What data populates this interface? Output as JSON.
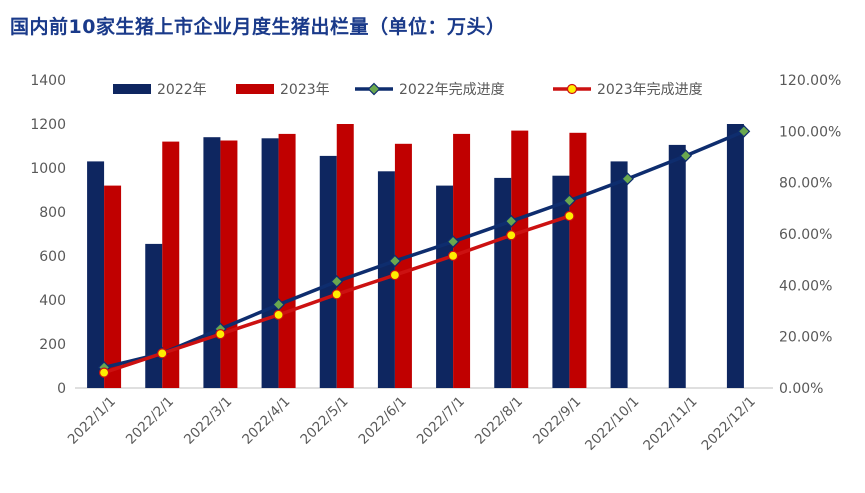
{
  "title": "国内前10家生猪上市企业月度生猪出栏量（单位：万头）",
  "colors": {
    "bar2022": "#0e2660",
    "bar2023": "#c00000",
    "line2022": "#0e2d6e",
    "marker2022": "#6aa84f",
    "line2023": "#cc1111",
    "marker2023": "#ffee00",
    "title": "#1a3a8a"
  },
  "chart_data": {
    "type": "bar",
    "categories": [
      "2022/1/1",
      "2022/2/1",
      "2022/3/1",
      "2022/4/1",
      "2022/5/1",
      "2022/6/1",
      "2022/7/1",
      "2022/8/1",
      "2022/9/1",
      "2022/10/1",
      "2022/11/1",
      "2022/12/1"
    ],
    "series": [
      {
        "name": "2022年",
        "kind": "bar",
        "axis": "left",
        "values": [
          1030,
          655,
          1140,
          1135,
          1055,
          985,
          920,
          955,
          965,
          1030,
          1105,
          1200
        ]
      },
      {
        "name": "2023年",
        "kind": "bar",
        "axis": "left",
        "values": [
          920,
          1120,
          1125,
          1155,
          1200,
          1110,
          1155,
          1170,
          1160,
          null,
          null,
          null
        ]
      },
      {
        "name": "2022年完成进度",
        "kind": "line",
        "axis": "right",
        "values": [
          0.08,
          0.135,
          0.23,
          0.325,
          0.415,
          0.495,
          0.57,
          0.65,
          0.73,
          0.815,
          0.905,
          1.0
        ]
      },
      {
        "name": "2023年完成进度",
        "kind": "line",
        "axis": "right",
        "values": [
          0.06,
          0.135,
          0.21,
          0.285,
          0.365,
          0.44,
          0.515,
          0.595,
          0.67,
          null,
          null,
          null
        ]
      }
    ],
    "ylim": [
      0,
      1400
    ],
    "yticks": [
      "0",
      "200",
      "400",
      "600",
      "800",
      "1000",
      "1200",
      "1400"
    ],
    "y2lim": [
      0,
      1.2
    ],
    "y2ticks": [
      "0.00%",
      "20.00%",
      "40.00%",
      "60.00%",
      "80.00%",
      "100.00%",
      "120.00%"
    ],
    "legend_position": "top",
    "grid": false
  }
}
